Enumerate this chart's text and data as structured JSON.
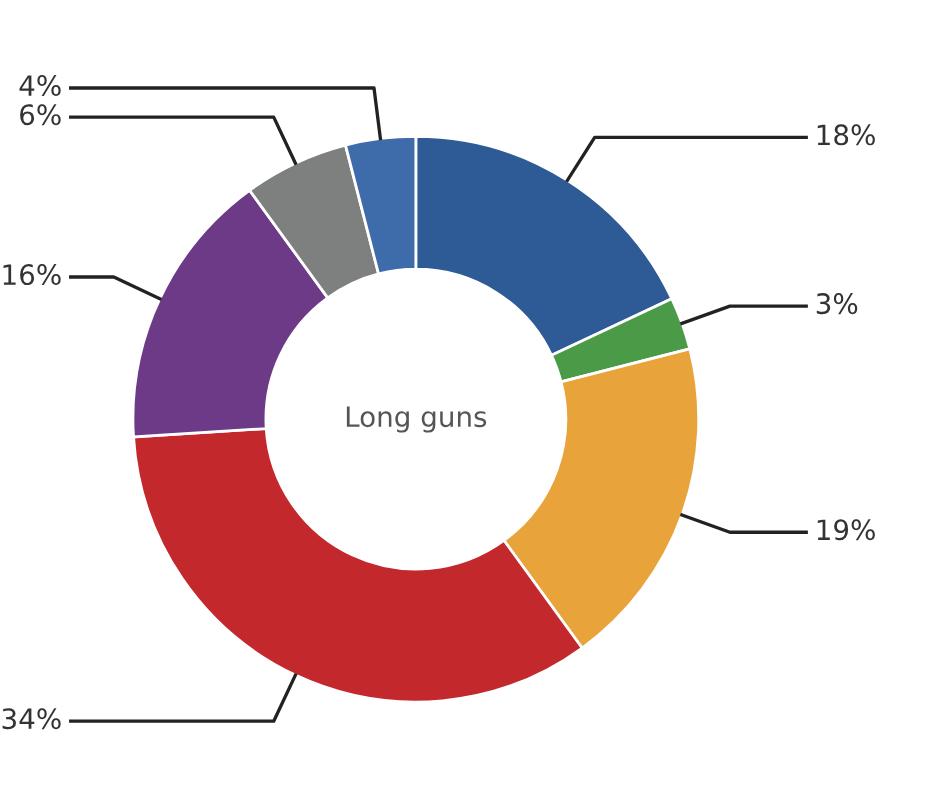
{
  "chart_data": {
    "type": "donut",
    "title": "Long guns",
    "categories": [
      null,
      null,
      null,
      null,
      null,
      null,
      null
    ],
    "values": [
      18,
      3,
      19,
      34,
      16,
      6,
      4
    ],
    "colors": [
      "#2e5b96",
      "#4a9a48",
      "#e9a33b",
      "#c3282c",
      "#6d3a88",
      "#7e7f7f",
      "#3e6ba9"
    ],
    "value_labels": [
      "18%",
      "3%",
      "19%",
      "34%",
      "16%",
      "6%",
      "4%"
    ],
    "legend": false
  }
}
